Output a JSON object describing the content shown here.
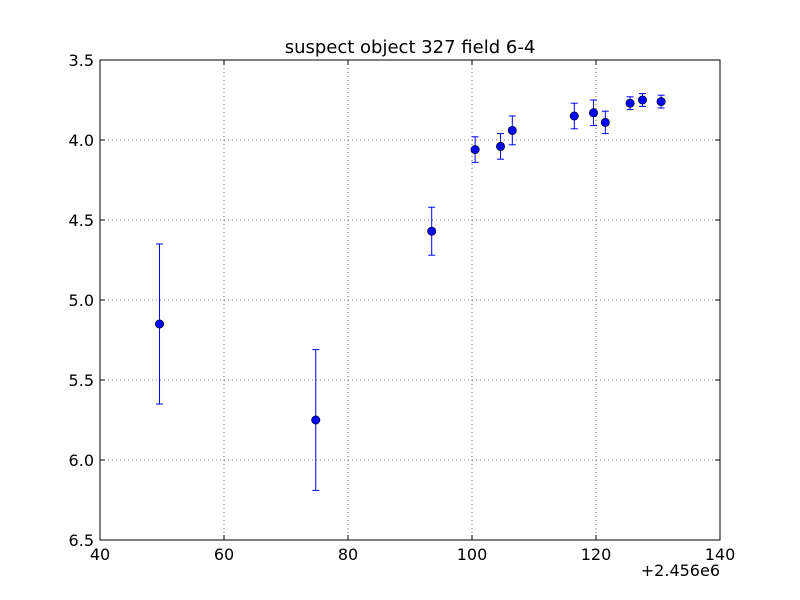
{
  "chart_data": {
    "type": "scatter",
    "title": "suspect object 327 field 6-4",
    "xlabel": "",
    "ylabel": "",
    "x_offset_label": "+2.456e6",
    "xlim": [
      40,
      140
    ],
    "ylim": [
      6.5,
      3.5
    ],
    "y_inverted": true,
    "grid": true,
    "legend": "none",
    "x_ticks": [
      40,
      60,
      80,
      100,
      120,
      140
    ],
    "x_tick_labels": [
      "40",
      "60",
      "80",
      "100",
      "120",
      "140"
    ],
    "y_ticks": [
      3.5,
      4.0,
      4.5,
      5.0,
      5.5,
      6.0,
      6.5
    ],
    "y_tick_labels": [
      "3.5",
      "4.0",
      "4.5",
      "5.0",
      "5.5",
      "6.0",
      "6.5"
    ],
    "series": [
      {
        "color": "#0000ff",
        "marker": "circle",
        "x": [
          49.6,
          74.8,
          93.5,
          100.5,
          104.6,
          106.5,
          116.5,
          119.6,
          121.5,
          125.5,
          127.5,
          130.5
        ],
        "y": [
          5.15,
          5.75,
          4.57,
          4.06,
          4.04,
          3.94,
          3.85,
          3.83,
          3.89,
          3.77,
          3.75,
          3.76
        ],
        "yerr": [
          0.5,
          0.44,
          0.15,
          0.08,
          0.08,
          0.09,
          0.08,
          0.08,
          0.07,
          0.04,
          0.04,
          0.04
        ]
      }
    ]
  }
}
